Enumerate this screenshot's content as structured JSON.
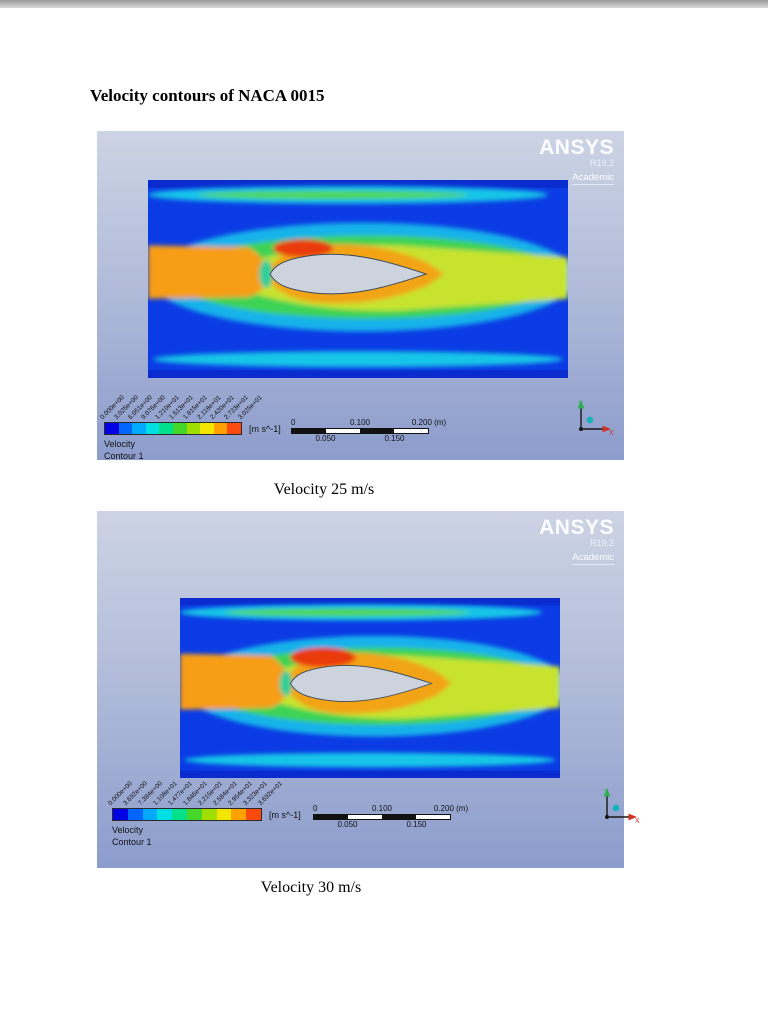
{
  "page": {
    "heading": "Velocity contours of NACA 0015"
  },
  "colorbar_colors": [
    "#0101e6",
    "#0165ff",
    "#01aaff",
    "#00dfe3",
    "#01e08b",
    "#45d629",
    "#a0de01",
    "#f2e600",
    "#ffa101",
    "#fb4a0d"
  ],
  "figures": [
    {
      "id": "velocity-25",
      "caption": "Velocity 25 m/s",
      "brand": {
        "name": "ANSYS",
        "release": "R19.2",
        "edition": "Academic"
      },
      "legend": {
        "title_line1": "Velocity",
        "title_line2": "Contour 1",
        "units": "[m s^-1]",
        "labels": [
          "0.000e+00",
          "3.025e+00",
          "6.051e+00",
          "9.076e+00",
          "1.210e+01",
          "1.513e+01",
          "1.815e+01",
          "2.118e+01",
          "2.420e+01",
          "2.723e+01",
          "3.025e+01"
        ]
      },
      "scale": {
        "zero": "0",
        "mid": "0.100",
        "end": "0.200 (m)",
        "q1": "0.050",
        "q3": "0.150"
      },
      "axes": {
        "x": "X",
        "y": "Y"
      }
    },
    {
      "id": "velocity-30",
      "caption": "Velocity 30 m/s",
      "brand": {
        "name": "ANSYS",
        "release": "R19.2",
        "edition": "Academic"
      },
      "legend": {
        "title_line1": "Velocity",
        "title_line2": "Contour 1",
        "units": "[m s^-1]",
        "labels": [
          "0.000e+00",
          "3.692e+00",
          "7.384e+00",
          "1.108e+01",
          "1.477e+01",
          "1.846e+01",
          "2.215e+01",
          "2.584e+01",
          "2.954e+01",
          "3.323e+01",
          "3.692e+01"
        ]
      },
      "scale": {
        "zero": "0",
        "mid": "0.100",
        "end": "0.200 (m)",
        "q1": "0.050",
        "q3": "0.150"
      },
      "axes": {
        "x": "X",
        "y": "Y"
      }
    }
  ]
}
